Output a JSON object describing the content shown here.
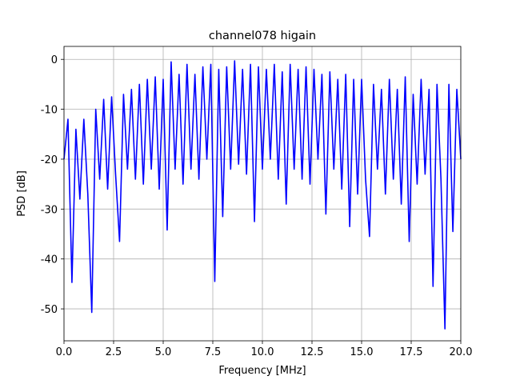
{
  "chart_data": {
    "type": "line",
    "title": "channel078 higain",
    "x_label": "Frequency [MHz]",
    "y_label": "PSD [dB]",
    "x": [
      0.0,
      0.2,
      0.4,
      0.6,
      0.8,
      1.0,
      1.2,
      1.4,
      1.6,
      1.8,
      2.0,
      2.2,
      2.4,
      2.6,
      2.8,
      3.0,
      3.2,
      3.4,
      3.6,
      3.8,
      4.0,
      4.2,
      4.4,
      4.6,
      4.8,
      5.0,
      5.2,
      5.4,
      5.6,
      5.8,
      6.0,
      6.2,
      6.4,
      6.6,
      6.8,
      7.0,
      7.2,
      7.4,
      7.6,
      7.8,
      8.0,
      8.2,
      8.4,
      8.6,
      8.8,
      9.0,
      9.2,
      9.4,
      9.6,
      9.8,
      10.0,
      10.2,
      10.4,
      10.6,
      10.8,
      11.0,
      11.2,
      11.4,
      11.6,
      11.8,
      12.0,
      12.2,
      12.4,
      12.6,
      12.8,
      13.0,
      13.2,
      13.4,
      13.6,
      13.8,
      14.0,
      14.2,
      14.4,
      14.6,
      14.8,
      15.0,
      15.2,
      15.4,
      15.6,
      15.8,
      16.0,
      16.2,
      16.4,
      16.6,
      16.8,
      17.0,
      17.2,
      17.4,
      17.6,
      17.8,
      18.0,
      18.2,
      18.4,
      18.6,
      18.8,
      19.0,
      19.2,
      19.4,
      19.6,
      19.8,
      20.0
    ],
    "series": [
      {
        "color": "#0000ff",
        "values": [
          -20,
          -12,
          -44.7,
          -14,
          -28,
          -12,
          -27,
          -50.7,
          -10,
          -24,
          -8,
          -26,
          -7.5,
          -23,
          -36.5,
          -7,
          -22,
          -6,
          -24,
          -5,
          -25,
          -4,
          -22,
          -3.5,
          -26,
          -4,
          -34.2,
          -0.5,
          -22,
          -3,
          -25,
          -1,
          -22,
          -3,
          -24,
          -1.5,
          -20,
          -1,
          -44.5,
          -2,
          -31.5,
          -1.5,
          -22,
          -0.3,
          -21,
          -2,
          -23,
          -1,
          -32.5,
          -1.5,
          -22,
          -2,
          -20,
          -1,
          -24,
          -2.5,
          -29,
          -1,
          -22,
          -2,
          -24,
          -1.5,
          -25,
          -2,
          -20,
          -3,
          -31,
          -2.5,
          -22,
          -4,
          -26,
          -3,
          -33.5,
          -4,
          -27,
          -4,
          -24,
          -35.5,
          -5,
          -22,
          -6,
          -27,
          -4,
          -24,
          -6,
          -29,
          -3.5,
          -36.5,
          -7,
          -25,
          -4,
          -23,
          -6,
          -45.5,
          -5,
          -24,
          -54,
          -5,
          -34.5,
          -6,
          -20
        ]
      }
    ],
    "xlim": [
      0,
      20
    ],
    "xticks": [
      {
        "value": 0,
        "label": "0.0"
      },
      2.5,
      {
        "value": 5,
        "label": "5.0"
      },
      7.5,
      {
        "value": 10,
        "label": "10.0"
      },
      12.5,
      {
        "value": 15,
        "label": "15.0"
      },
      17.5,
      {
        "value": 20,
        "label": "20.0"
      }
    ],
    "ylim": [
      -56.4,
      2.6
    ],
    "yticks": [
      0,
      -10,
      -20,
      -30,
      -40,
      -50
    ],
    "grid": true
  }
}
